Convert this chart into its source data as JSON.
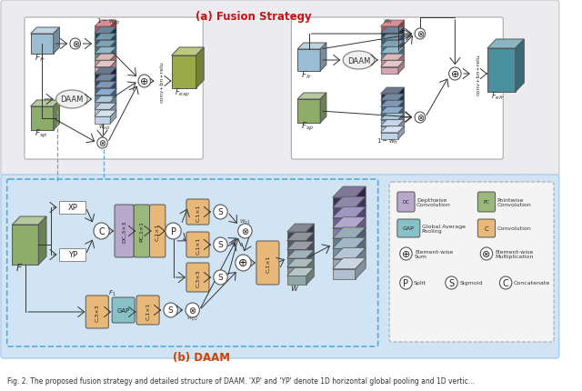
{
  "title_a": "(a) Fusion Strategy",
  "title_b": "(b) DAAM",
  "caption": "Fig. 2. The proposed fusion strategy and detailed structure of DAAM. 'XP' and 'YP' denote 1D horizontal global pooling and 1D vertic...",
  "top_bg": "#eeeef2",
  "bot_bg": "#d8e8f8",
  "colors": {
    "blue_cube": "#9bbdd4",
    "green_cube": "#8dac6a",
    "pink_front": "#d4a0a8",
    "blue_stack_front": "#8aaabf",
    "teal_cube": "#4a8fa0",
    "olive_cube": "#8faa40",
    "dc_box": "#b8a8cc",
    "pc_box": "#9ab87a",
    "gap_box": "#88c0c8",
    "conv_box": "#e8b878",
    "white": "#ffffff",
    "arrow": "#333333",
    "dashed": "#55aadd"
  }
}
